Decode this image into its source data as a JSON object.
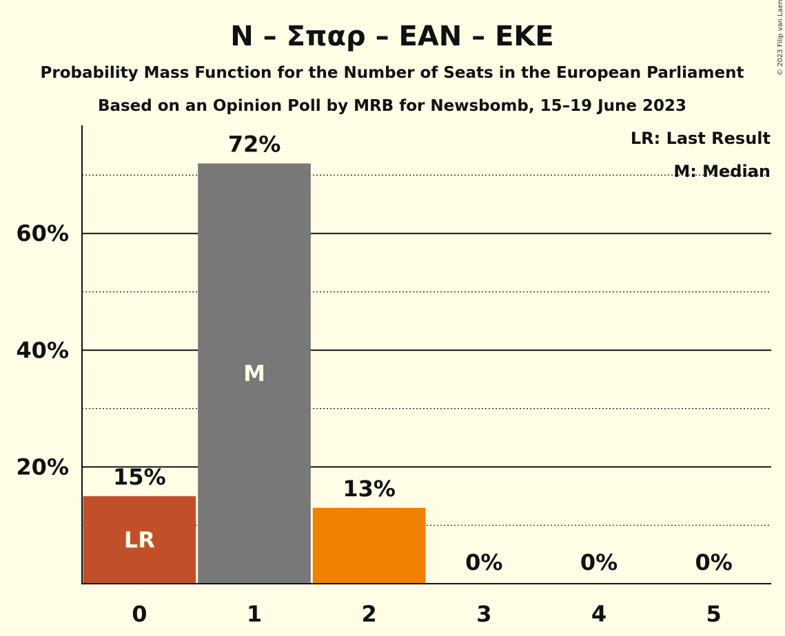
{
  "header": {
    "title": "N – Σπαρ – EAN – EKE",
    "subtitle1": "Probability Mass Function for the Number of Seats in the European Parliament",
    "subtitle2": "Based on an Opinion Poll by MRB for Newsbomb, 15–19 June 2023"
  },
  "copyright": "© 2023 Filip van Laenen",
  "legend": {
    "last_result": "LR: Last Result",
    "median": "M: Median"
  },
  "colors": {
    "background": "#FFFDE6",
    "last_result_bar": "#C1502A",
    "median_bar": "#787878",
    "other_bar": "#F08000"
  },
  "chart_data": {
    "type": "bar",
    "categories": [
      "0",
      "1",
      "2",
      "3",
      "4",
      "5"
    ],
    "values": [
      15,
      72,
      13,
      0,
      0,
      0
    ],
    "value_labels": [
      "15%",
      "72%",
      "13%",
      "0%",
      "0%",
      "0%"
    ],
    "bar_markers": [
      "LR",
      "M",
      "",
      "",
      "",
      ""
    ],
    "yticks": [
      20,
      40,
      60
    ],
    "ytick_labels": [
      "20%",
      "40%",
      "60%"
    ],
    "minor_gridlines": [
      10,
      30,
      50,
      70
    ],
    "ylim": [
      0,
      78.5
    ],
    "grid": true,
    "legend_position": "top-right"
  }
}
